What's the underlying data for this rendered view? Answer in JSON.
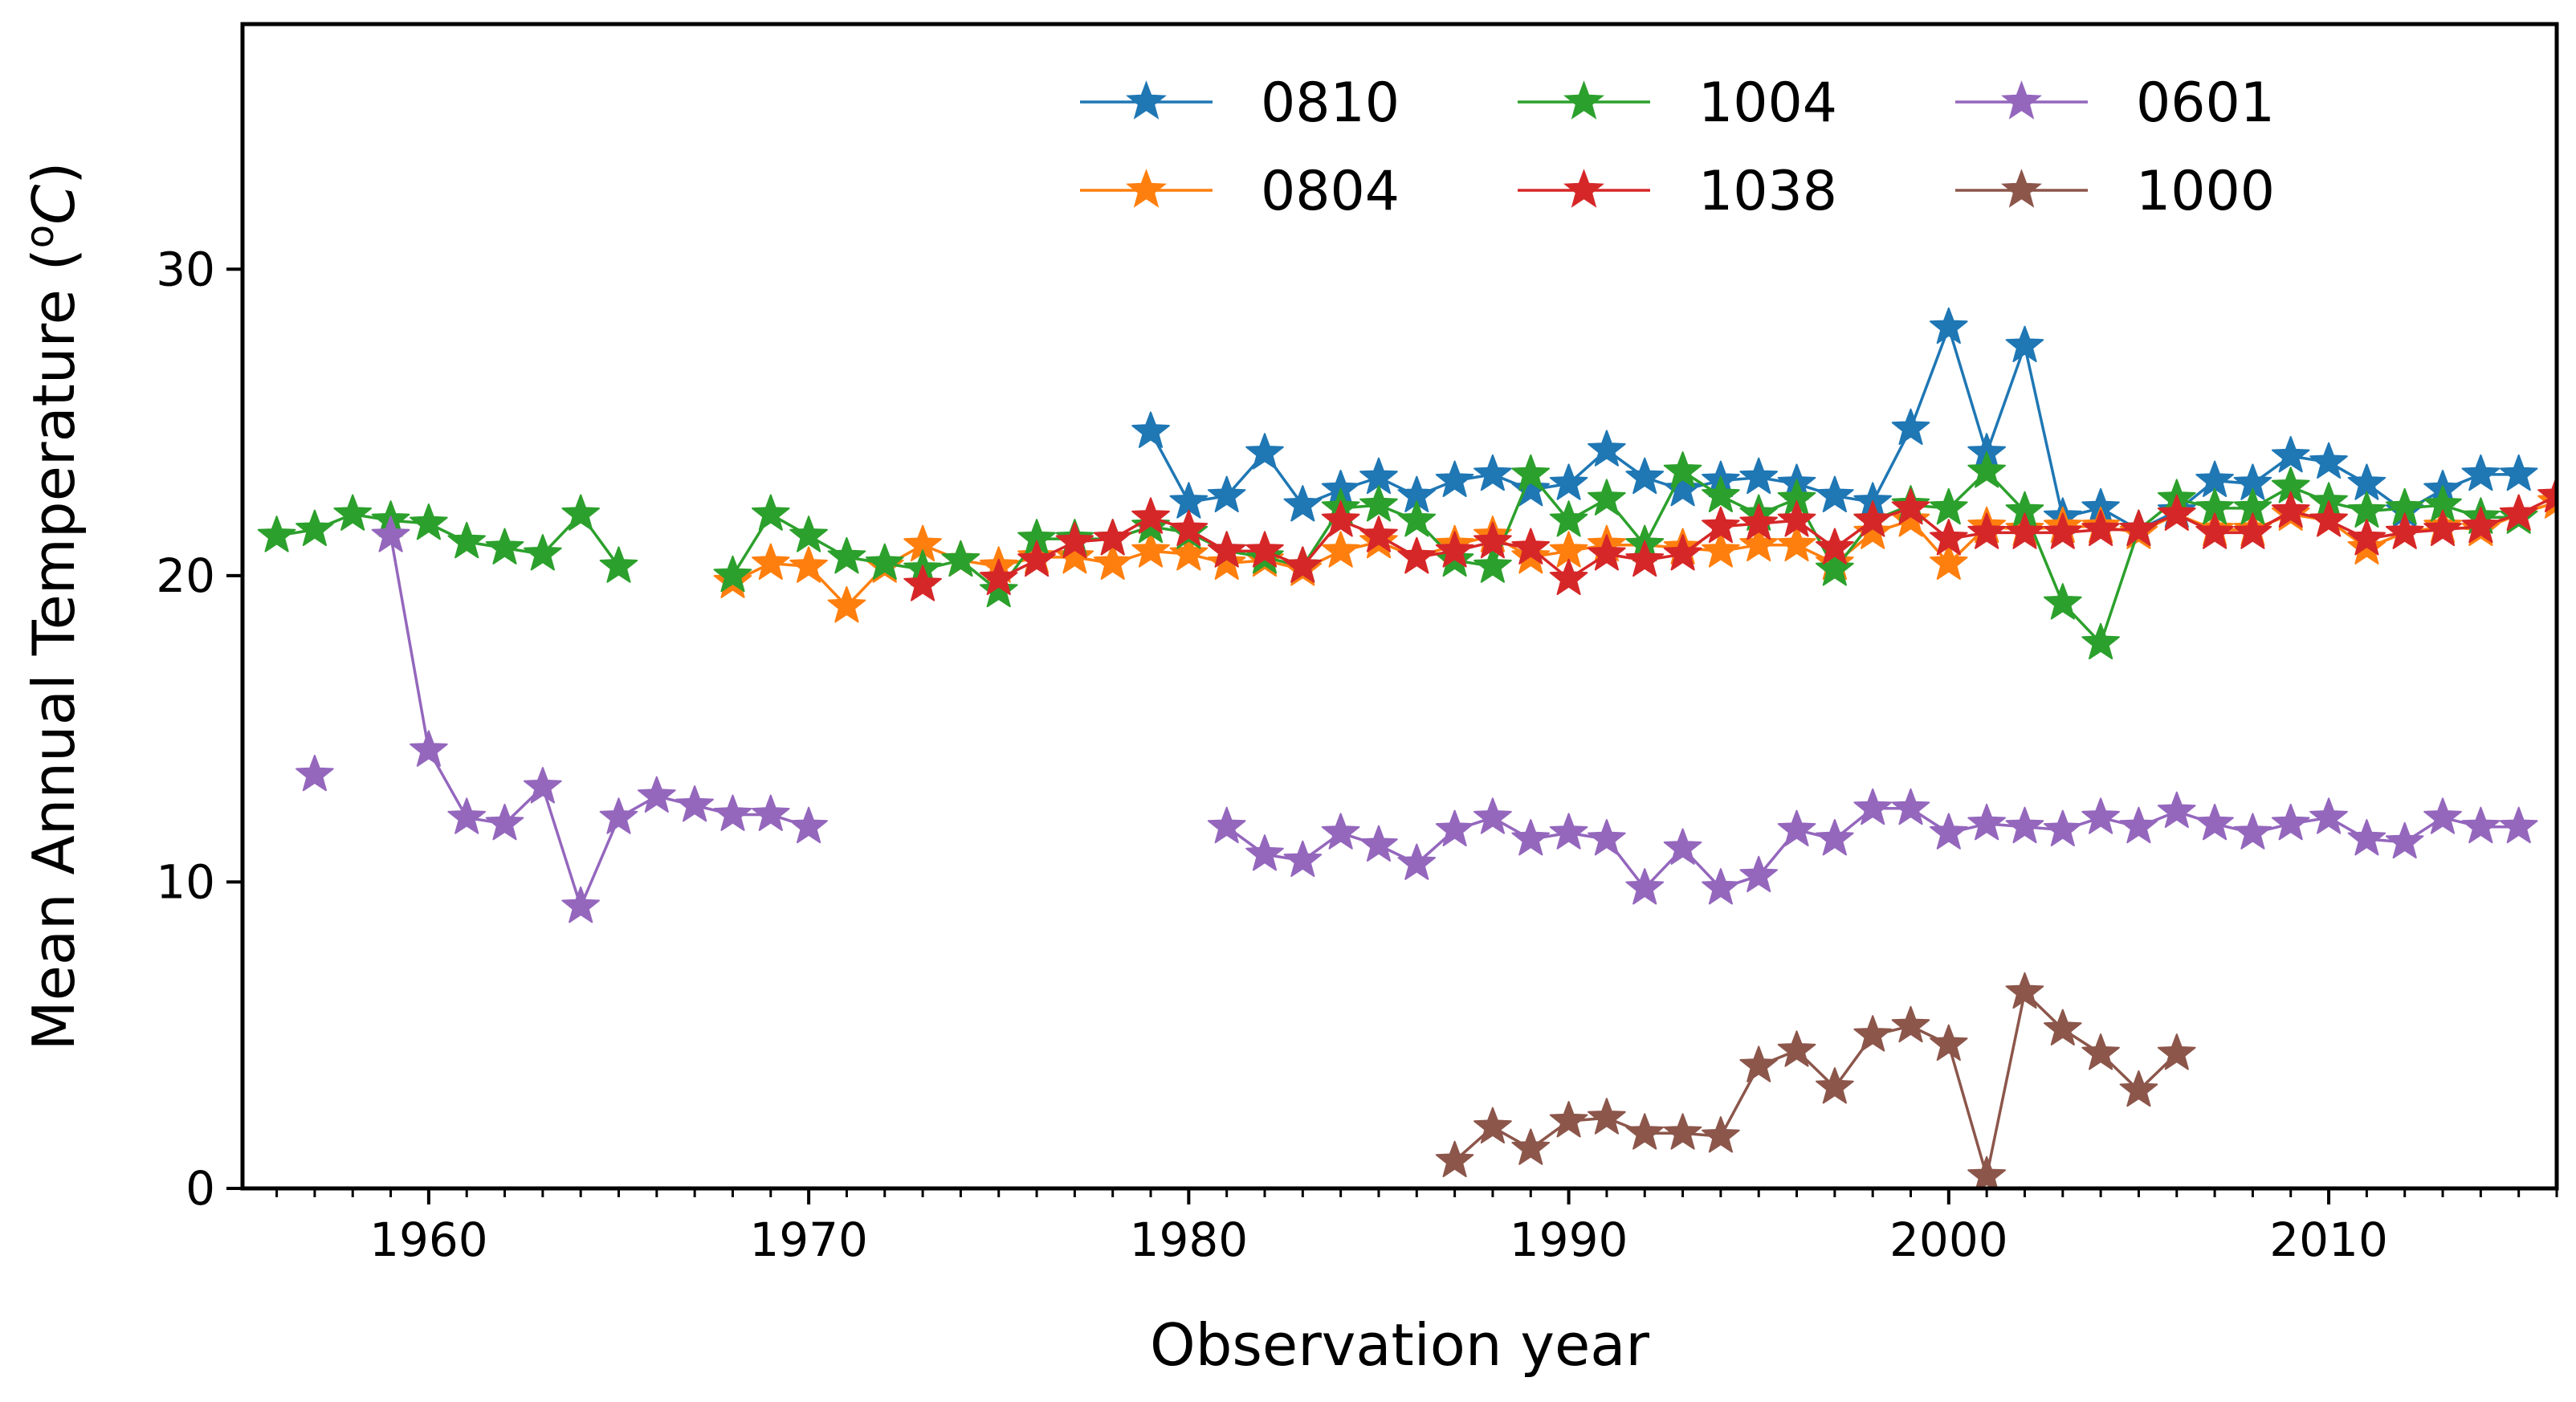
{
  "chart_data": {
    "type": "line",
    "title": "",
    "xlabel": "Observation year",
    "ylabel": "Mean Annual Temperature",
    "ylabel_unit_sup": "o",
    "ylabel_unit": "C",
    "xlim": [
      1955.1,
      2016
    ],
    "ylim": [
      0,
      38
    ],
    "xticks": [
      1960,
      1970,
      1980,
      1990,
      2000,
      2010
    ],
    "yticks": [
      0,
      10,
      20,
      30
    ],
    "legend_position": "top-center",
    "legend_columns": 3,
    "marker": "star",
    "series": [
      {
        "name": "0810",
        "color": "#1f77b4",
        "points": [
          [
            1979,
            24.7
          ],
          [
            1980,
            22.4
          ],
          [
            1981,
            22.6
          ],
          [
            1982,
            24.0
          ],
          [
            1983,
            22.3
          ],
          [
            1984,
            22.8
          ],
          [
            1985,
            23.2
          ],
          [
            1986,
            22.6
          ],
          [
            1987,
            23.1
          ],
          [
            1988,
            23.3
          ],
          [
            1989,
            22.8
          ],
          [
            1990,
            23.0
          ],
          [
            1991,
            24.1
          ],
          [
            1992,
            23.2
          ],
          [
            1993,
            22.8
          ],
          [
            1994,
            23.1
          ],
          [
            1995,
            23.2
          ],
          [
            1996,
            23.0
          ],
          [
            1997,
            22.6
          ],
          [
            1998,
            22.4
          ],
          [
            1999,
            24.8
          ],
          [
            2000,
            28.1
          ],
          [
            2001,
            24.0
          ],
          [
            2002,
            27.5
          ],
          [
            2003,
            21.9
          ],
          [
            2004,
            22.2
          ],
          [
            2005,
            21.5
          ],
          [
            2006,
            22.1
          ],
          [
            2007,
            23.1
          ],
          [
            2008,
            23.0
          ],
          [
            2009,
            23.9
          ],
          [
            2010,
            23.7
          ],
          [
            2011,
            23.0
          ],
          [
            2012,
            22.1
          ],
          [
            2013,
            22.8
          ],
          [
            2014,
            23.3
          ],
          [
            2015,
            23.3
          ]
        ]
      },
      {
        "name": "0804",
        "color": "#ff7f0e",
        "points": [
          [
            1968,
            19.8
          ],
          [
            1969,
            20.4
          ],
          [
            1970,
            20.3
          ],
          [
            1971,
            19.0
          ],
          [
            1972,
            20.3
          ],
          [
            1973,
            21.0
          ],
          [
            1974,
            20.5
          ],
          [
            1975,
            20.3
          ],
          [
            1976,
            20.6
          ],
          [
            1977,
            20.6
          ],
          [
            1978,
            20.4
          ],
          [
            1979,
            20.8
          ],
          [
            1980,
            20.7
          ],
          [
            1981,
            20.4
          ],
          [
            1982,
            20.5
          ],
          [
            1983,
            20.2
          ],
          [
            1984,
            20.8
          ],
          [
            1985,
            21.1
          ],
          [
            1986,
            20.6
          ],
          [
            1987,
            21.0
          ],
          [
            1988,
            21.3
          ],
          [
            1989,
            20.6
          ],
          [
            1990,
            20.8
          ],
          [
            1991,
            21.0
          ],
          [
            1992,
            21.0
          ],
          [
            1993,
            20.9
          ],
          [
            1994,
            20.8
          ],
          [
            1995,
            21.0
          ],
          [
            1996,
            21.0
          ],
          [
            1997,
            20.4
          ],
          [
            1998,
            21.4
          ],
          [
            1999,
            21.8
          ],
          [
            2000,
            20.4
          ],
          [
            2001,
            21.6
          ],
          [
            2002,
            21.5
          ],
          [
            2003,
            21.6
          ],
          [
            2004,
            21.6
          ],
          [
            2005,
            21.4
          ],
          [
            2006,
            22.0
          ],
          [
            2007,
            21.5
          ],
          [
            2008,
            21.5
          ],
          [
            2009,
            22.0
          ],
          [
            2010,
            21.8
          ],
          [
            2011,
            20.9
          ],
          [
            2012,
            21.4
          ],
          [
            2013,
            21.6
          ],
          [
            2014,
            21.5
          ],
          [
            2015,
            22.0
          ],
          [
            2016,
            22.4
          ]
        ]
      },
      {
        "name": "1004",
        "color": "#2ca02c",
        "points": [
          [
            1956,
            21.3
          ],
          [
            1957,
            21.5
          ],
          [
            1958,
            22.0
          ],
          [
            1959,
            21.8
          ],
          [
            1960,
            21.7
          ],
          [
            1961,
            21.1
          ],
          [
            1962,
            20.9
          ],
          [
            1963,
            20.7
          ],
          [
            1964,
            22.0
          ],
          [
            1965,
            20.3
          ],
          null,
          [
            1968,
            20.0
          ],
          [
            1969,
            22.0
          ],
          [
            1970,
            21.3
          ],
          [
            1971,
            20.6
          ],
          [
            1972,
            20.4
          ],
          [
            1973,
            20.2
          ],
          [
            1974,
            20.5
          ],
          [
            1975,
            19.5
          ],
          [
            1976,
            21.2
          ],
          [
            1977,
            21.2
          ],
          [
            1978,
            21.2
          ],
          [
            1979,
            21.6
          ],
          [
            1980,
            21.4
          ],
          [
            1981,
            20.8
          ],
          [
            1982,
            20.6
          ],
          [
            1983,
            20.3
          ],
          [
            1984,
            22.2
          ],
          [
            1985,
            22.3
          ],
          [
            1986,
            21.8
          ],
          [
            1987,
            20.5
          ],
          [
            1988,
            20.3
          ],
          [
            1989,
            23.3
          ],
          [
            1990,
            21.8
          ],
          [
            1991,
            22.5
          ],
          [
            1992,
            21.0
          ],
          [
            1993,
            23.4
          ],
          [
            1994,
            22.6
          ],
          [
            1995,
            22.0
          ],
          [
            1996,
            22.5
          ],
          [
            1997,
            20.2
          ],
          [
            1998,
            21.8
          ],
          [
            1999,
            22.3
          ],
          [
            2000,
            22.2
          ],
          [
            2001,
            23.4
          ],
          [
            2002,
            22.1
          ],
          [
            2003,
            19.1
          ],
          [
            2004,
            17.8
          ],
          [
            2005,
            21.5
          ],
          [
            2006,
            22.5
          ],
          [
            2007,
            22.2
          ],
          [
            2008,
            22.2
          ],
          [
            2009,
            22.9
          ],
          [
            2010,
            22.4
          ],
          [
            2011,
            22.1
          ],
          [
            2012,
            22.2
          ],
          [
            2013,
            22.3
          ],
          [
            2014,
            21.9
          ],
          [
            2015,
            21.9
          ]
        ]
      },
      {
        "name": "1038",
        "color": "#d62728",
        "points": [
          [
            1973,
            19.7
          ],
          null,
          [
            1975,
            19.9
          ],
          [
            1976,
            20.5
          ],
          [
            1977,
            21.1
          ],
          [
            1978,
            21.2
          ],
          [
            1979,
            21.9
          ],
          [
            1980,
            21.5
          ],
          [
            1981,
            20.8
          ],
          [
            1982,
            20.8
          ],
          [
            1983,
            20.3
          ],
          [
            1984,
            21.8
          ],
          [
            1985,
            21.3
          ],
          [
            1986,
            20.6
          ],
          [
            1987,
            20.8
          ],
          [
            1988,
            21.1
          ],
          [
            1989,
            20.9
          ],
          [
            1990,
            19.9
          ],
          [
            1991,
            20.7
          ],
          [
            1992,
            20.5
          ],
          [
            1993,
            20.7
          ],
          [
            1994,
            21.6
          ],
          [
            1995,
            21.7
          ],
          [
            1996,
            21.8
          ],
          [
            1997,
            20.9
          ],
          [
            1998,
            21.8
          ],
          [
            1999,
            22.2
          ],
          [
            2000,
            21.2
          ],
          [
            2001,
            21.4
          ],
          [
            2002,
            21.4
          ],
          [
            2003,
            21.4
          ],
          [
            2004,
            21.5
          ],
          [
            2005,
            21.5
          ],
          [
            2006,
            22.0
          ],
          [
            2007,
            21.4
          ],
          [
            2008,
            21.4
          ],
          [
            2009,
            22.1
          ],
          [
            2010,
            21.8
          ],
          [
            2011,
            21.2
          ],
          [
            2012,
            21.4
          ],
          [
            2013,
            21.5
          ],
          [
            2014,
            21.6
          ],
          [
            2015,
            22.0
          ],
          [
            2016,
            22.6
          ]
        ]
      },
      {
        "name": "0601",
        "color": "#9467bd",
        "points": [
          [
            1957,
            13.5
          ],
          null,
          [
            1959,
            21.3
          ],
          [
            1960,
            14.3
          ],
          [
            1961,
            12.1
          ],
          [
            1962,
            11.9
          ],
          [
            1963,
            13.1
          ],
          [
            1964,
            9.2
          ],
          [
            1965,
            12.1
          ],
          [
            1966,
            12.8
          ],
          [
            1967,
            12.5
          ],
          [
            1968,
            12.2
          ],
          [
            1969,
            12.2
          ],
          [
            1970,
            11.8
          ],
          null,
          [
            1981,
            11.8
          ],
          [
            1982,
            10.9
          ],
          [
            1983,
            10.7
          ],
          [
            1984,
            11.6
          ],
          [
            1985,
            11.2
          ],
          [
            1986,
            10.6
          ],
          [
            1987,
            11.7
          ],
          [
            1988,
            12.1
          ],
          [
            1989,
            11.4
          ],
          [
            1990,
            11.6
          ],
          [
            1991,
            11.4
          ],
          [
            1992,
            9.8
          ],
          [
            1993,
            11.1
          ],
          [
            1994,
            9.8
          ],
          [
            1995,
            10.2
          ],
          [
            1996,
            11.7
          ],
          [
            1997,
            11.4
          ],
          [
            1998,
            12.4
          ],
          [
            1999,
            12.4
          ],
          [
            2000,
            11.6
          ],
          [
            2001,
            11.9
          ],
          [
            2002,
            11.8
          ],
          [
            2003,
            11.7
          ],
          [
            2004,
            12.1
          ],
          [
            2005,
            11.8
          ],
          [
            2006,
            12.3
          ],
          [
            2007,
            11.9
          ],
          [
            2008,
            11.6
          ],
          [
            2009,
            11.9
          ],
          [
            2010,
            12.1
          ],
          [
            2011,
            11.4
          ],
          [
            2012,
            11.3
          ],
          [
            2013,
            12.1
          ],
          [
            2014,
            11.8
          ],
          [
            2015,
            11.8
          ]
        ]
      },
      {
        "name": "1000",
        "color": "#8c564b",
        "points": [
          [
            1987,
            0.9
          ],
          [
            1988,
            2.0
          ],
          [
            1989,
            1.3
          ],
          [
            1990,
            2.2
          ],
          [
            1991,
            2.3
          ],
          [
            1992,
            1.8
          ],
          [
            1993,
            1.8
          ],
          [
            1994,
            1.7
          ],
          [
            1995,
            4.0
          ],
          [
            1996,
            4.5
          ],
          [
            1997,
            3.3
          ],
          [
            1998,
            5.0
          ],
          [
            1999,
            5.3
          ],
          [
            2000,
            4.7
          ],
          [
            2001,
            0.4
          ],
          [
            2002,
            6.4
          ],
          [
            2003,
            5.2
          ],
          [
            2004,
            4.4
          ],
          [
            2005,
            3.2
          ],
          [
            2006,
            4.4
          ]
        ]
      }
    ]
  }
}
